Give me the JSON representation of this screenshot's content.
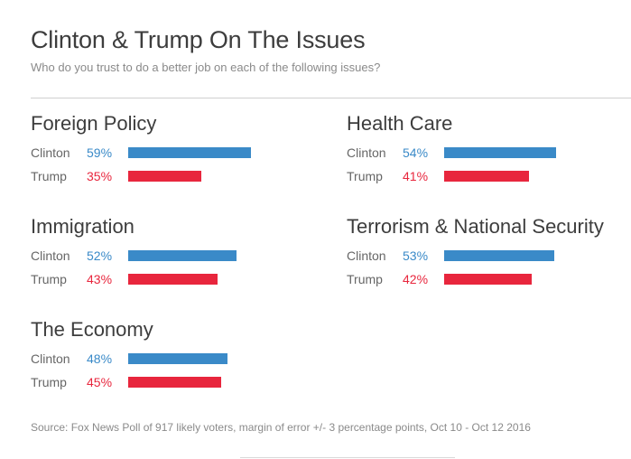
{
  "header": {
    "title": "Clinton & Trump On The Issues",
    "subtitle": "Who do you trust to do a better job on each of the following issues?"
  },
  "source": "Source: Fox News Poll of 917 likely voters, margin of error +/- 3 percentage points, Oct 10 - Oct 12 2016",
  "colors": {
    "clinton": "#3a8ac8",
    "trump": "#e8263d"
  },
  "chart_data": [
    {
      "type": "bar",
      "title": "Foreign Policy",
      "categories": [
        "Clinton",
        "Trump"
      ],
      "values": [
        59,
        35
      ],
      "value_labels": [
        "59%",
        "35%"
      ],
      "unit": "%"
    },
    {
      "type": "bar",
      "title": "Health Care",
      "categories": [
        "Clinton",
        "Trump"
      ],
      "values": [
        54,
        41
      ],
      "value_labels": [
        "54%",
        "41%"
      ],
      "unit": "%"
    },
    {
      "type": "bar",
      "title": "Immigration",
      "categories": [
        "Clinton",
        "Trump"
      ],
      "values": [
        52,
        43
      ],
      "value_labels": [
        "52%",
        "43%"
      ],
      "unit": "%"
    },
    {
      "type": "bar",
      "title": "Terrorism & National Security",
      "categories": [
        "Clinton",
        "Trump"
      ],
      "values": [
        53,
        42
      ],
      "value_labels": [
        "53%",
        "42%"
      ],
      "unit": "%"
    },
    {
      "type": "bar",
      "title": "The Economy",
      "categories": [
        "Clinton",
        "Trump"
      ],
      "values": [
        48,
        45
      ],
      "value_labels": [
        "48%",
        "45%"
      ],
      "unit": "%"
    }
  ]
}
